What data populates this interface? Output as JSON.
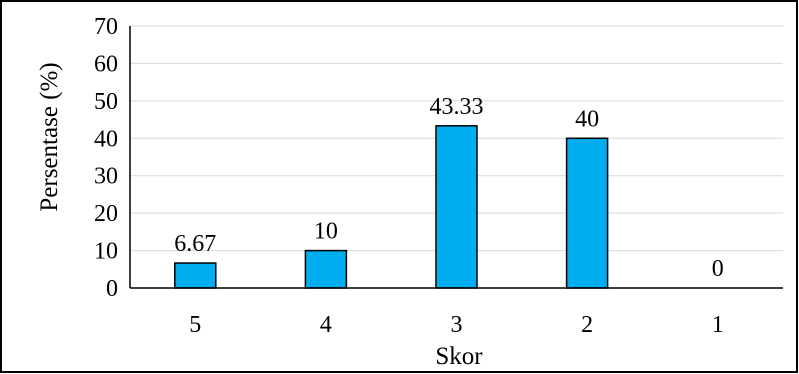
{
  "chart_data": {
    "type": "bar",
    "categories": [
      "5",
      "4",
      "3",
      "2",
      "1"
    ],
    "values": [
      6.67,
      10,
      43.33,
      40,
      0
    ],
    "data_labels": [
      "6.67",
      "10",
      "43.33",
      "40",
      "0"
    ],
    "title": "",
    "xlabel": "Skor",
    "ylabel": "Persentase (%)",
    "ylim": [
      0,
      70
    ],
    "yticks": [
      0,
      10,
      20,
      30,
      40,
      50,
      60,
      70
    ],
    "grid": true,
    "bar_color": "#00AEEF",
    "bar_edge_color": "#000000",
    "grid_color": "#d9d9d9"
  }
}
